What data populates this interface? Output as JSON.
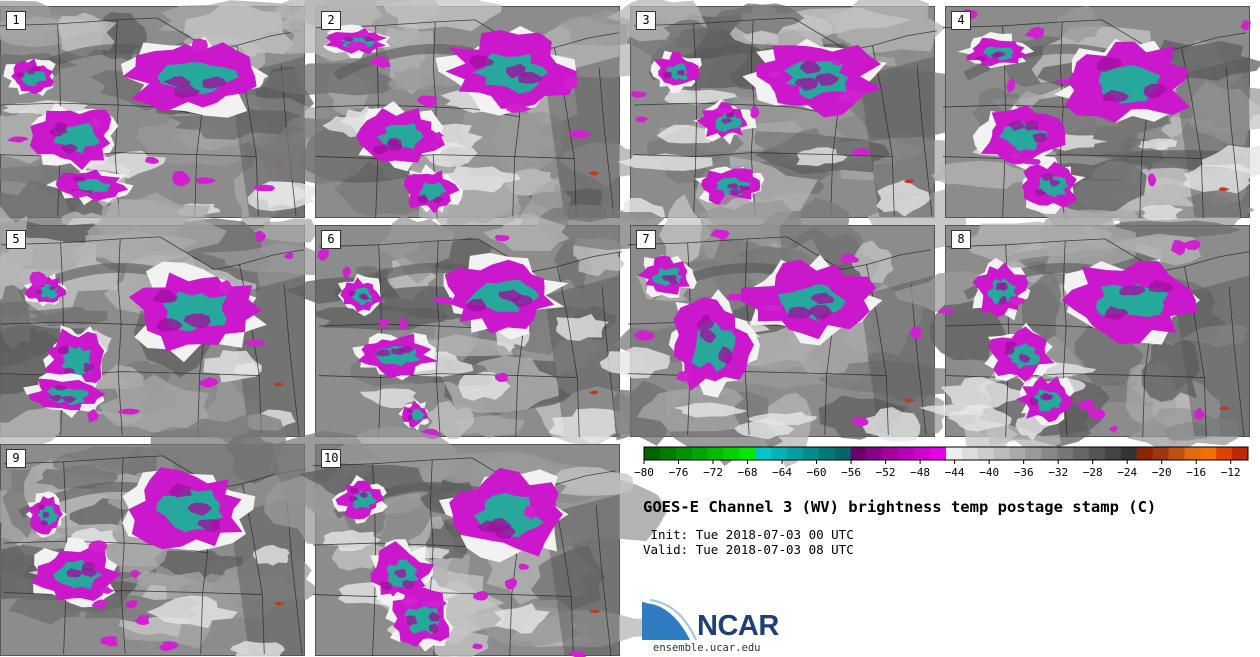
{
  "title": "GOES-E Channel 3 (WV) brightness temp postage stamp (C)",
  "init_label": " Init:",
  "init_time": "Tue 2018-07-03 00 UTC",
  "valid_label": "Valid:",
  "valid_time": "Tue 2018-07-03 08 UTC",
  "logo_text": "NCAR",
  "site_url": "ensemble.ucar.edu",
  "stamps": [
    "1",
    "2",
    "3",
    "4",
    "5",
    "6",
    "7",
    "8",
    "9",
    "10"
  ],
  "colorbar": {
    "units": "C",
    "tick_labels": [
      "-80",
      "-76",
      "-72",
      "-68",
      "-64",
      "-60",
      "-56",
      "-52",
      "-48",
      "-44",
      "-40",
      "-36",
      "-32",
      "-28",
      "-24",
      "-20",
      "-16",
      "-12"
    ],
    "range": [
      -80,
      -10
    ],
    "step": 2,
    "colors": [
      "#006400",
      "#007a00",
      "#009000",
      "#00a600",
      "#00bc00",
      "#00d200",
      "#00e800",
      "#00c8c8",
      "#00b4b4",
      "#00a0a0",
      "#008c8c",
      "#007878",
      "#006666",
      "#6e006e",
      "#880088",
      "#a000a0",
      "#b800b8",
      "#d000d0",
      "#e800e8",
      "#eeeeee",
      "#dddddd",
      "#cccccc",
      "#bbbbbb",
      "#aaaaaa",
      "#999999",
      "#888888",
      "#777777",
      "#666666",
      "#555555",
      "#444444",
      "#333333",
      "#8b2500",
      "#a0360e",
      "#c05010",
      "#e06a10",
      "#f07000",
      "#e04000",
      "#c02800"
    ]
  }
}
